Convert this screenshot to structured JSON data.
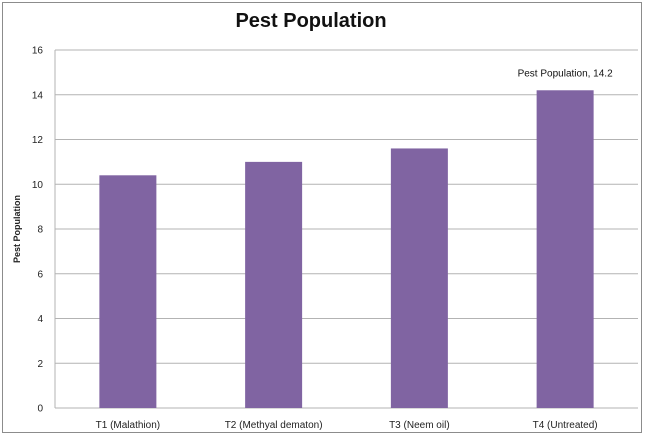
{
  "chart_data": {
    "type": "bar",
    "title": "Pest Population",
    "xlabel": "",
    "ylabel": "Pest Population",
    "categories": [
      "T1 (Malathion)",
      "T2 (Methyal dematon)",
      "T3 (Neem oil)",
      "T4 (Untreated)"
    ],
    "series": [
      {
        "name": "Pest Population",
        "values": [
          10.4,
          11.0,
          11.6,
          14.2
        ],
        "color": "#8064a2"
      }
    ],
    "ylim": [
      0,
      16
    ],
    "yticks": [
      "0",
      "2",
      "4",
      "6",
      "8",
      "10",
      "12",
      "14",
      "16"
    ],
    "grid": true,
    "legend": "none",
    "data_label": {
      "category_index": 3,
      "text": "Pest Population, 14.2"
    }
  }
}
